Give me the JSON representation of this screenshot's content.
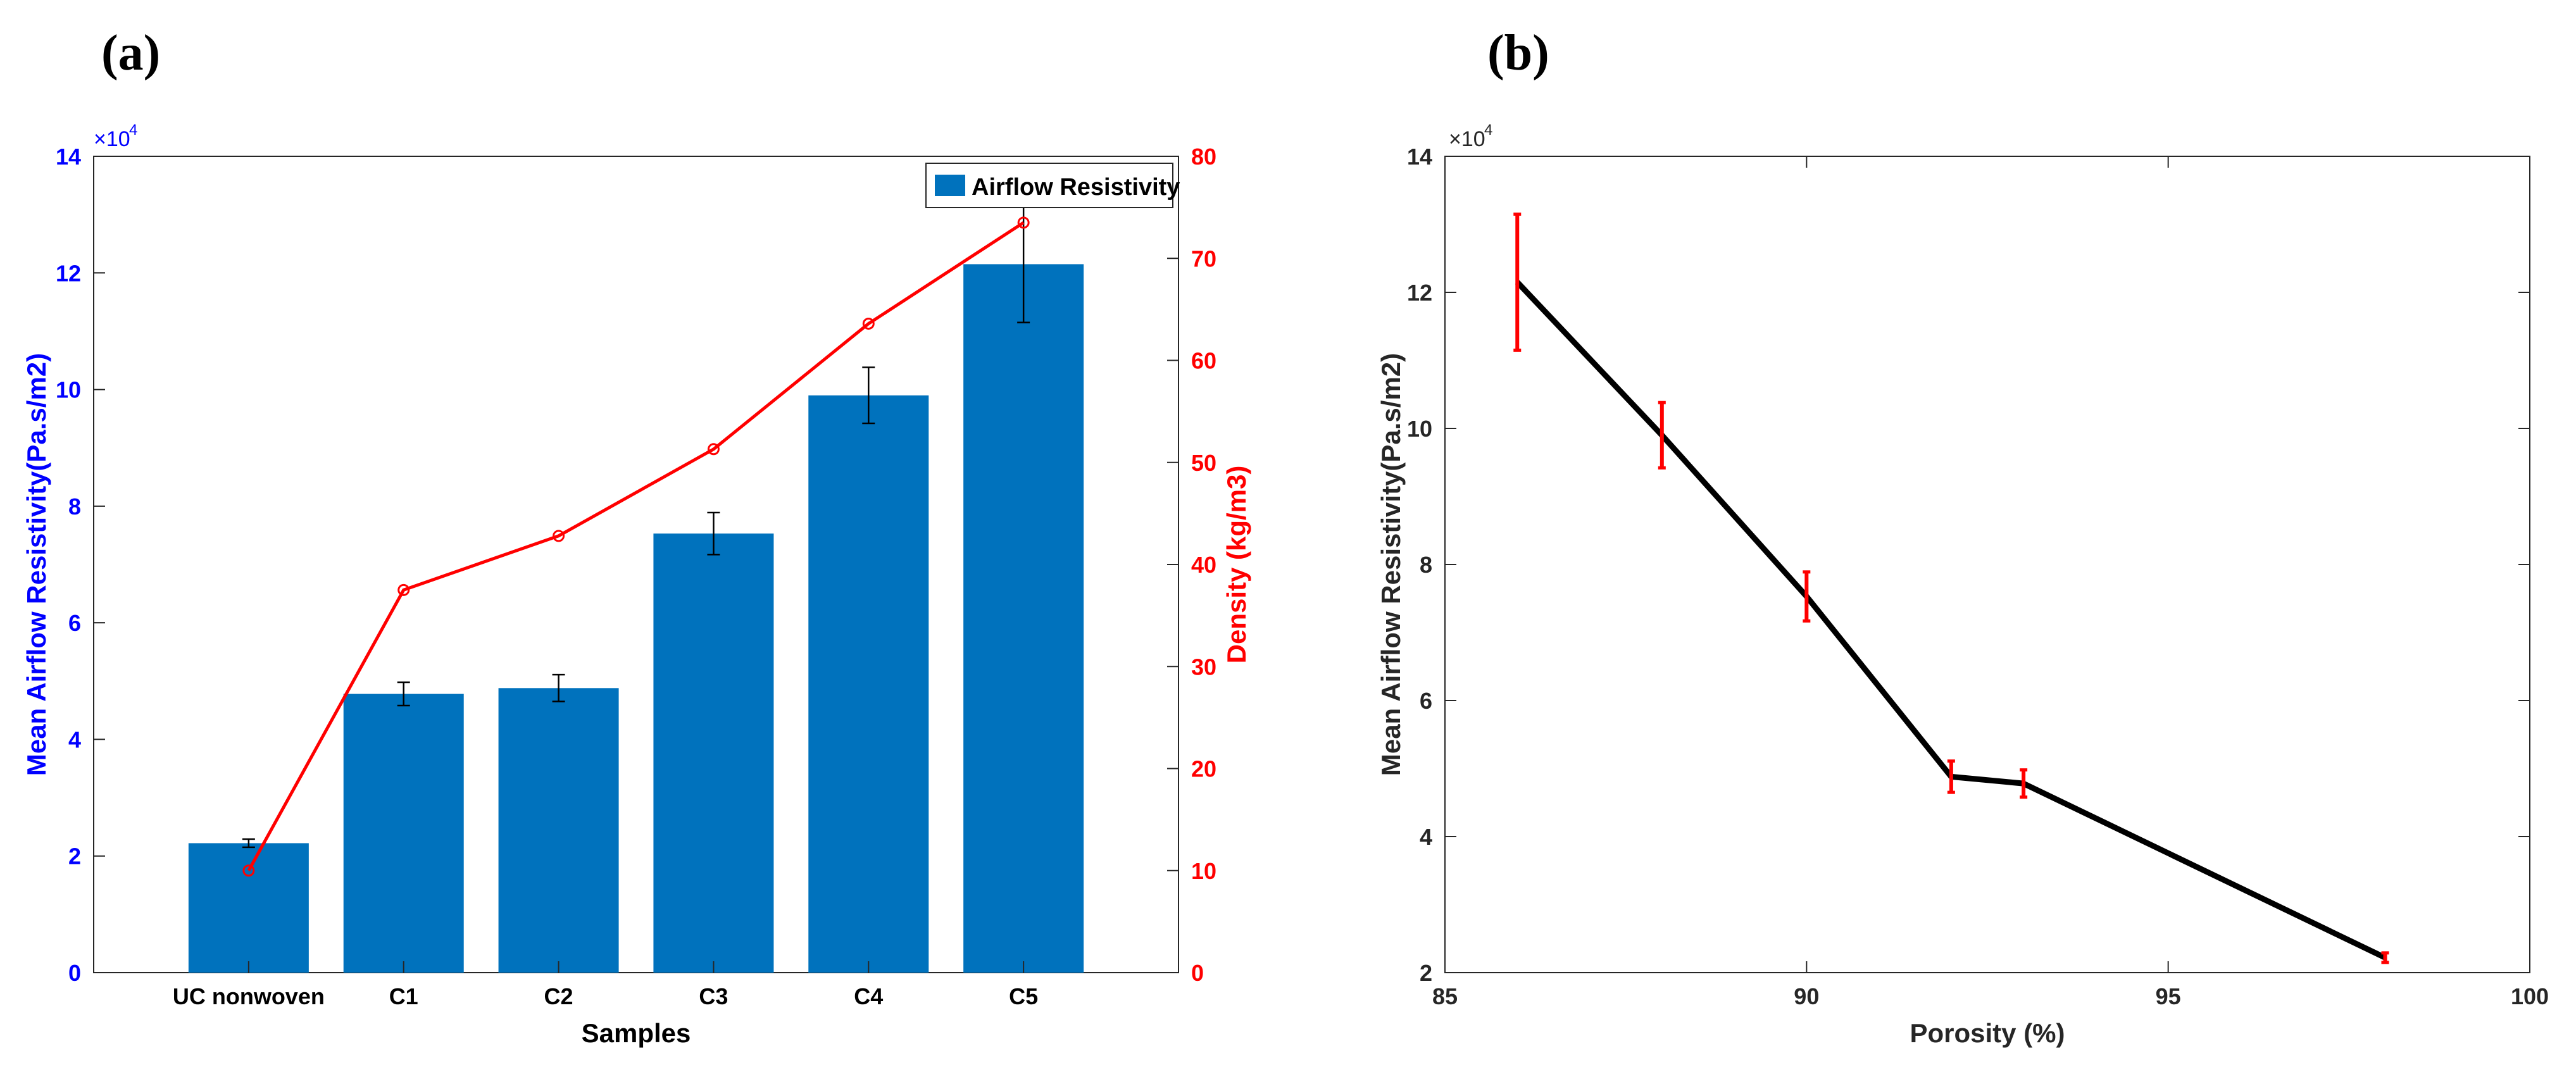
{
  "panels": {
    "a_label": "(a)",
    "b_label": "(b)"
  },
  "colors": {
    "bar": "#0072BD",
    "left_axis": "#0000FF",
    "density": "#FF0000",
    "line_b": "#000000",
    "errorbar_b": "#FF0000",
    "axis": "#262626"
  },
  "chart_data": [
    {
      "type": "bar",
      "panel": "(a)",
      "xlabel": "Samples",
      "ylabel": "Mean Airflow Resistivity(Pa.s/m2)",
      "ylabel_right": "Density (kg/m3)",
      "categories": [
        "UC nonwoven",
        "C1",
        "C2",
        "C3",
        "C4",
        "C5"
      ],
      "series": [
        {
          "name": "Airflow Resistivity",
          "axis": "left",
          "type": "bar",
          "values": [
            22200,
            47800,
            48800,
            75300,
            99000,
            121500
          ],
          "errors": [
            700,
            2000,
            2300,
            3600,
            4800,
            10000
          ]
        },
        {
          "name": "Density",
          "axis": "right",
          "type": "line",
          "values": [
            10,
            37.5,
            42.8,
            51.3,
            63.6,
            73.5
          ]
        }
      ],
      "ylim": [
        0,
        140000
      ],
      "y_ticks": [
        0,
        2,
        4,
        6,
        8,
        10,
        12,
        14
      ],
      "y_exponent_base": "×10",
      "y_exponent_power": "4",
      "ylim_right": [
        0,
        80
      ],
      "y_ticks_right": [
        0,
        10,
        20,
        30,
        40,
        50,
        60,
        70,
        80
      ],
      "legend": [
        "Airflow Resistivity"
      ],
      "legend_position": "top-right",
      "grid": false
    },
    {
      "type": "line",
      "panel": "(b)",
      "xlabel": "Porosity (%)",
      "ylabel": "Mean Airflow Resistivity(Pa.s/m2)",
      "series": [
        {
          "name": "Mean Airflow Resistivity",
          "x": [
            86,
            88,
            90,
            92,
            93,
            98
          ],
          "y": [
            121500,
            99000,
            75300,
            48800,
            47800,
            22200
          ],
          "errors": [
            10000,
            4800,
            3600,
            2300,
            2000,
            700
          ]
        }
      ],
      "xlim": [
        85,
        100
      ],
      "x_ticks": [
        85,
        90,
        95,
        100
      ],
      "ylim": [
        20000,
        140000
      ],
      "y_ticks": [
        2,
        4,
        6,
        8,
        10,
        12,
        14
      ],
      "y_exponent_base": "×10",
      "y_exponent_power": "4",
      "grid": false
    }
  ]
}
